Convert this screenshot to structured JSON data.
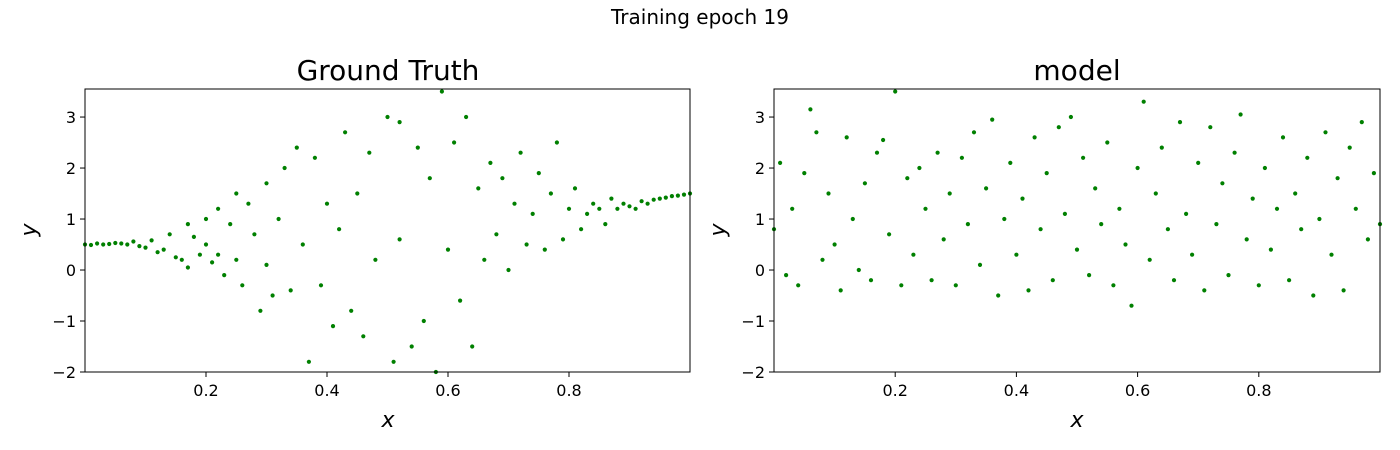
{
  "figure": {
    "suptitle": "Training epoch 19"
  },
  "chart_data": [
    {
      "type": "scatter",
      "title": "Ground Truth",
      "xlabel": "x",
      "ylabel": "y",
      "xlim": [
        0.0,
        1.0
      ],
      "ylim": [
        -2,
        3.55
      ],
      "xticks": [
        0.2,
        0.4,
        0.6,
        0.8
      ],
      "xtick_labels": [
        "0.2",
        "0.4",
        "0.6",
        "0.8"
      ],
      "yticks": [
        -2,
        -1,
        0,
        1,
        2,
        3
      ],
      "ytick_labels": [
        "−2",
        "−1",
        "0",
        "1",
        "2",
        "3"
      ],
      "marker_color": "#008000",
      "grid": false,
      "legend": "none",
      "n_points": 1000,
      "points": [
        [
          0.0,
          0.5
        ],
        [
          0.01,
          0.49
        ],
        [
          0.02,
          0.52
        ],
        [
          0.03,
          0.5
        ],
        [
          0.04,
          0.51
        ],
        [
          0.05,
          0.53
        ],
        [
          0.06,
          0.52
        ],
        [
          0.07,
          0.5
        ],
        [
          0.08,
          0.56
        ],
        [
          0.09,
          0.47
        ],
        [
          0.1,
          0.44
        ],
        [
          0.11,
          0.58
        ],
        [
          0.12,
          0.35
        ],
        [
          0.13,
          0.4
        ],
        [
          0.14,
          0.7
        ],
        [
          0.15,
          0.25
        ],
        [
          0.16,
          0.2
        ],
        [
          0.17,
          0.05
        ],
        [
          0.17,
          0.9
        ],
        [
          0.18,
          0.65
        ],
        [
          0.19,
          0.3
        ],
        [
          0.2,
          1.0
        ],
        [
          0.2,
          0.5
        ],
        [
          0.21,
          0.15
        ],
        [
          0.22,
          1.2
        ],
        [
          0.22,
          0.3
        ],
        [
          0.23,
          -0.1
        ],
        [
          0.24,
          0.9
        ],
        [
          0.25,
          1.5
        ],
        [
          0.25,
          0.2
        ],
        [
          0.26,
          -0.3
        ],
        [
          0.27,
          1.3
        ],
        [
          0.28,
          0.7
        ],
        [
          0.29,
          -0.8
        ],
        [
          0.3,
          1.7
        ],
        [
          0.3,
          0.1
        ],
        [
          0.31,
          -0.5
        ],
        [
          0.32,
          1.0
        ],
        [
          0.33,
          2.0
        ],
        [
          0.34,
          -0.4
        ],
        [
          0.35,
          2.4
        ],
        [
          0.36,
          0.5
        ],
        [
          0.37,
          -1.8
        ],
        [
          0.38,
          2.2
        ],
        [
          0.39,
          -0.3
        ],
        [
          0.4,
          1.3
        ],
        [
          0.41,
          -1.1
        ],
        [
          0.42,
          0.8
        ],
        [
          0.43,
          2.7
        ],
        [
          0.44,
          -0.8
        ],
        [
          0.45,
          1.5
        ],
        [
          0.46,
          -1.3
        ],
        [
          0.47,
          2.3
        ],
        [
          0.48,
          0.2
        ],
        [
          0.5,
          3.0
        ],
        [
          0.51,
          -1.8
        ],
        [
          0.52,
          2.9
        ],
        [
          0.52,
          0.6
        ],
        [
          0.54,
          -1.5
        ],
        [
          0.55,
          2.4
        ],
        [
          0.56,
          -1.0
        ],
        [
          0.57,
          1.8
        ],
        [
          0.58,
          -2.0
        ],
        [
          0.59,
          3.5
        ],
        [
          0.6,
          0.4
        ],
        [
          0.61,
          2.5
        ],
        [
          0.62,
          -0.6
        ],
        [
          0.63,
          3.0
        ],
        [
          0.64,
          -1.5
        ],
        [
          0.65,
          1.6
        ],
        [
          0.66,
          0.2
        ],
        [
          0.67,
          2.1
        ],
        [
          0.68,
          0.7
        ],
        [
          0.69,
          1.8
        ],
        [
          0.7,
          0.0
        ],
        [
          0.71,
          1.3
        ],
        [
          0.72,
          2.3
        ],
        [
          0.73,
          0.5
        ],
        [
          0.74,
          1.1
        ],
        [
          0.75,
          1.9
        ],
        [
          0.76,
          0.4
        ],
        [
          0.77,
          1.5
        ],
        [
          0.78,
          2.5
        ],
        [
          0.79,
          0.6
        ],
        [
          0.8,
          1.2
        ],
        [
          0.81,
          1.6
        ],
        [
          0.82,
          0.8
        ],
        [
          0.83,
          1.1
        ],
        [
          0.84,
          1.3
        ],
        [
          0.85,
          1.2
        ],
        [
          0.86,
          0.9
        ],
        [
          0.87,
          1.4
        ],
        [
          0.88,
          1.2
        ],
        [
          0.89,
          1.3
        ],
        [
          0.9,
          1.25
        ],
        [
          0.91,
          1.2
        ],
        [
          0.92,
          1.35
        ],
        [
          0.93,
          1.3
        ],
        [
          0.94,
          1.38
        ],
        [
          0.95,
          1.4
        ],
        [
          0.96,
          1.42
        ],
        [
          0.97,
          1.45
        ],
        [
          0.98,
          1.46
        ],
        [
          0.99,
          1.48
        ],
        [
          1.0,
          1.5
        ]
      ]
    },
    {
      "type": "scatter",
      "title": "model",
      "xlabel": "x",
      "ylabel": "y",
      "xlim": [
        0.0,
        1.0
      ],
      "ylim": [
        -2,
        3.55
      ],
      "xticks": [
        0.2,
        0.4,
        0.6,
        0.8
      ],
      "xtick_labels": [
        "0.2",
        "0.4",
        "0.6",
        "0.8"
      ],
      "yticks": [
        -2,
        -1,
        0,
        1,
        2,
        3
      ],
      "ytick_labels": [
        "−2",
        "−1",
        "0",
        "1",
        "2",
        "3"
      ],
      "marker_color": "#008000",
      "grid": false,
      "legend": "none",
      "n_points": 1000,
      "points": [
        [
          0.0,
          0.8
        ],
        [
          0.01,
          2.1
        ],
        [
          0.02,
          -0.1
        ],
        [
          0.03,
          1.2
        ],
        [
          0.04,
          -0.3
        ],
        [
          0.05,
          1.9
        ],
        [
          0.06,
          3.15
        ],
        [
          0.07,
          2.7
        ],
        [
          0.08,
          0.2
        ],
        [
          0.09,
          1.5
        ],
        [
          0.1,
          0.5
        ],
        [
          0.11,
          -0.4
        ],
        [
          0.12,
          2.6
        ],
        [
          0.13,
          1.0
        ],
        [
          0.14,
          0.0
        ],
        [
          0.15,
          1.7
        ],
        [
          0.16,
          -0.2
        ],
        [
          0.17,
          2.3
        ],
        [
          0.18,
          2.55
        ],
        [
          0.19,
          0.7
        ],
        [
          0.2,
          3.5
        ],
        [
          0.21,
          -0.3
        ],
        [
          0.22,
          1.8
        ],
        [
          0.23,
          0.3
        ],
        [
          0.24,
          2.0
        ],
        [
          0.25,
          1.2
        ],
        [
          0.26,
          -0.2
        ],
        [
          0.27,
          2.3
        ],
        [
          0.28,
          0.6
        ],
        [
          0.29,
          1.5
        ],
        [
          0.3,
          -0.3
        ],
        [
          0.31,
          2.2
        ],
        [
          0.32,
          0.9
        ],
        [
          0.33,
          2.7
        ],
        [
          0.34,
          0.1
        ],
        [
          0.35,
          1.6
        ],
        [
          0.36,
          2.95
        ],
        [
          0.37,
          -0.5
        ],
        [
          0.38,
          1.0
        ],
        [
          0.39,
          2.1
        ],
        [
          0.4,
          0.3
        ],
        [
          0.41,
          1.4
        ],
        [
          0.42,
          -0.4
        ],
        [
          0.43,
          2.6
        ],
        [
          0.44,
          0.8
        ],
        [
          0.45,
          1.9
        ],
        [
          0.46,
          -0.2
        ],
        [
          0.47,
          2.8
        ],
        [
          0.48,
          1.1
        ],
        [
          0.49,
          3.0
        ],
        [
          0.5,
          0.4
        ],
        [
          0.51,
          2.2
        ],
        [
          0.52,
          -0.1
        ],
        [
          0.53,
          1.6
        ],
        [
          0.54,
          0.9
        ],
        [
          0.55,
          2.5
        ],
        [
          0.56,
          -0.3
        ],
        [
          0.57,
          1.2
        ],
        [
          0.58,
          0.5
        ],
        [
          0.59,
          -0.7
        ],
        [
          0.6,
          2.0
        ],
        [
          0.61,
          3.3
        ],
        [
          0.62,
          0.2
        ],
        [
          0.63,
          1.5
        ],
        [
          0.64,
          2.4
        ],
        [
          0.65,
          0.8
        ],
        [
          0.66,
          -0.2
        ],
        [
          0.67,
          2.9
        ],
        [
          0.68,
          1.1
        ],
        [
          0.69,
          0.3
        ],
        [
          0.7,
          2.1
        ],
        [
          0.71,
          -0.4
        ],
        [
          0.72,
          2.8
        ],
        [
          0.73,
          0.9
        ],
        [
          0.74,
          1.7
        ],
        [
          0.75,
          -0.1
        ],
        [
          0.76,
          2.3
        ],
        [
          0.77,
          3.05
        ],
        [
          0.78,
          0.6
        ],
        [
          0.79,
          1.4
        ],
        [
          0.8,
          -0.3
        ],
        [
          0.81,
          2.0
        ],
        [
          0.82,
          0.4
        ],
        [
          0.83,
          1.2
        ],
        [
          0.84,
          2.6
        ],
        [
          0.85,
          -0.2
        ],
        [
          0.86,
          1.5
        ],
        [
          0.87,
          0.8
        ],
        [
          0.88,
          2.2
        ],
        [
          0.89,
          -0.5
        ],
        [
          0.9,
          1.0
        ],
        [
          0.91,
          2.7
        ],
        [
          0.92,
          0.3
        ],
        [
          0.93,
          1.8
        ],
        [
          0.94,
          -0.4
        ],
        [
          0.95,
          2.4
        ],
        [
          0.96,
          1.2
        ],
        [
          0.97,
          2.9
        ],
        [
          0.98,
          0.6
        ],
        [
          0.99,
          1.9
        ],
        [
          1.0,
          0.9
        ]
      ]
    }
  ]
}
